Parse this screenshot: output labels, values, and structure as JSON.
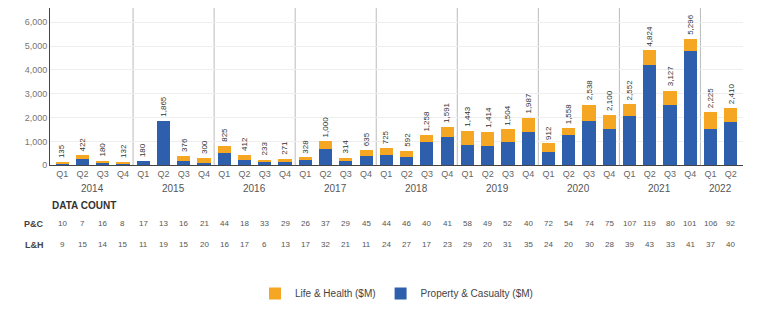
{
  "chart_data": {
    "type": "bar",
    "stacked": true,
    "categories": [
      "Q1",
      "Q2",
      "Q3",
      "Q4",
      "Q1",
      "Q2",
      "Q3",
      "Q4",
      "Q1",
      "Q2",
      "Q3",
      "Q4",
      "Q1",
      "Q2",
      "Q3",
      "Q4",
      "Q1",
      "Q2",
      "Q3",
      "Q4",
      "Q1",
      "Q2",
      "Q3",
      "Q4",
      "Q1",
      "Q2",
      "Q3",
      "Q4",
      "Q1",
      "Q2",
      "Q3",
      "Q4",
      "Q1",
      "Q2"
    ],
    "groups": [
      {
        "label": "2014",
        "size": 4
      },
      {
        "label": "2015",
        "size": 4
      },
      {
        "label": "2016",
        "size": 4
      },
      {
        "label": "2017",
        "size": 4
      },
      {
        "label": "2018",
        "size": 4
      },
      {
        "label": "2019",
        "size": 4
      },
      {
        "label": "2020",
        "size": 4
      },
      {
        "label": "2021",
        "size": 4
      },
      {
        "label": "2022",
        "size": 2
      }
    ],
    "series": [
      {
        "name": "Property & Casualty ($M)",
        "color": "#2E5FAC",
        "values": [
          85,
          242,
          110,
          72,
          180,
          1865,
          176,
          100,
          525,
          212,
          133,
          151,
          228,
          700,
          174,
          385,
          425,
          342,
          958,
          1191,
          843,
          814,
          954,
          1387,
          562,
          1258,
          1838,
          1500,
          2052,
          4224,
          2527,
          4796,
          1525,
          1810
        ]
      },
      {
        "name": "Life & Health ($M)",
        "color": "#F5A623",
        "values": [
          50,
          180,
          70,
          60,
          0,
          0,
          200,
          200,
          300,
          200,
          100,
          120,
          100,
          300,
          140,
          250,
          300,
          250,
          300,
          400,
          600,
          600,
          550,
          600,
          350,
          300,
          700,
          600,
          500,
          600,
          600,
          500,
          700,
          600
        ]
      }
    ],
    "totals": [
      135,
      422,
      180,
      132,
      180,
      1865,
      376,
      300,
      825,
      412,
      233,
      271,
      328,
      1000,
      314,
      635,
      725,
      592,
      1258,
      1591,
      1443,
      1414,
      1504,
      1987,
      912,
      1558,
      2538,
      2100,
      2552,
      4824,
      3127,
      5296,
      2225,
      2410
    ],
    "total_labels": [
      "135",
      "422",
      "180",
      "132",
      "180",
      "1,865",
      "376",
      "300",
      "825",
      "412",
      "233",
      "271",
      "328",
      "1,000",
      "314",
      "635",
      "725",
      "592",
      "1,258",
      "1,591",
      "1,443",
      "1,414",
      "1,504",
      "1,987",
      "912",
      "1,558",
      "2,538",
      "2,100",
      "2,552",
      "4,824",
      "3,127",
      "5,296",
      "2,225",
      "2,410"
    ],
    "table": {
      "title": "DATA COUNT",
      "rows": [
        {
          "label": "P&C",
          "values": [
            10,
            7,
            16,
            8,
            17,
            13,
            16,
            21,
            44,
            18,
            33,
            29,
            26,
            37,
            29,
            45,
            44,
            46,
            40,
            41,
            58,
            49,
            52,
            40,
            72,
            54,
            74,
            75,
            107,
            119,
            80,
            101,
            106,
            92
          ]
        },
        {
          "label": "L&H",
          "values": [
            9,
            15,
            14,
            15,
            11,
            19,
            15,
            20,
            16,
            17,
            6,
            13,
            17,
            32,
            21,
            11,
            24,
            27,
            17,
            23,
            29,
            20,
            31,
            35,
            24,
            20,
            30,
            28,
            39,
            43,
            33,
            41,
            37,
            40
          ]
        }
      ]
    },
    "ylim": [
      0,
      6600
    ],
    "yticks": [
      0,
      {
        "value": 1000,
        "label": "1,000"
      },
      {
        "value": 2000,
        "label": "2,000"
      },
      {
        "value": 3000,
        "label": "3,000"
      },
      {
        "value": 4000,
        "label": "4,000"
      },
      {
        "value": 5000,
        "label": "5,000"
      },
      {
        "value": 6000,
        "label": "6,000"
      }
    ],
    "grid": true,
    "legend": "bottom"
  }
}
